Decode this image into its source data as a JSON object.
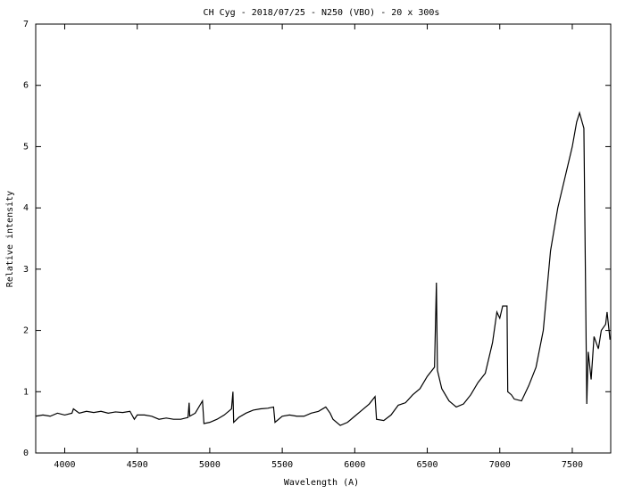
{
  "chart_data": {
    "type": "line",
    "title": "CH Cyg - 2018/07/25 - N250 (VBO) - 20 x 300s",
    "xlabel": "Wavelength (A)",
    "ylabel": "Relative intensity",
    "xlim": [
      3800,
      7765
    ],
    "ylim": [
      0,
      7
    ],
    "xticks": [
      4000,
      4500,
      5000,
      5500,
      6000,
      6500,
      7000,
      7500
    ],
    "yticks": [
      0,
      1,
      2,
      3,
      4,
      5,
      6,
      7
    ],
    "x": [
      3800,
      3850,
      3900,
      3950,
      4000,
      4050,
      4060,
      4100,
      4150,
      4200,
      4250,
      4300,
      4350,
      4400,
      4450,
      4480,
      4500,
      4550,
      4600,
      4650,
      4700,
      4750,
      4800,
      4850,
      4858,
      4862,
      4900,
      4950,
      4960,
      5000,
      5050,
      5100,
      5150,
      5160,
      5165,
      5200,
      5250,
      5300,
      5350,
      5400,
      5440,
      5450,
      5500,
      5550,
      5600,
      5650,
      5700,
      5750,
      5800,
      5830,
      5850,
      5900,
      5950,
      6000,
      6050,
      6100,
      6140,
      6150,
      6200,
      6250,
      6300,
      6350,
      6400,
      6450,
      6500,
      6550,
      6563,
      6570,
      6600,
      6650,
      6700,
      6750,
      6800,
      6850,
      6900,
      6950,
      6980,
      7000,
      7020,
      7050,
      7055,
      7080,
      7100,
      7150,
      7200,
      7250,
      7300,
      7350,
      7400,
      7450,
      7500,
      7530,
      7550,
      7580,
      7600,
      7610,
      7630,
      7650,
      7680,
      7700,
      7730,
      7740,
      7760
    ],
    "series": [
      {
        "name": "CH Cyg",
        "color": "#000000",
        "values": [
          0.6,
          0.62,
          0.6,
          0.65,
          0.62,
          0.65,
          0.72,
          0.65,
          0.68,
          0.66,
          0.68,
          0.65,
          0.67,
          0.66,
          0.68,
          0.55,
          0.62,
          0.62,
          0.6,
          0.55,
          0.57,
          0.55,
          0.55,
          0.58,
          0.82,
          0.6,
          0.65,
          0.85,
          0.48,
          0.5,
          0.55,
          0.62,
          0.72,
          1.0,
          0.5,
          0.58,
          0.65,
          0.7,
          0.72,
          0.73,
          0.75,
          0.5,
          0.6,
          0.62,
          0.6,
          0.6,
          0.65,
          0.68,
          0.75,
          0.65,
          0.55,
          0.45,
          0.5,
          0.6,
          0.7,
          0.8,
          0.92,
          0.55,
          0.53,
          0.62,
          0.78,
          0.82,
          0.95,
          1.05,
          1.25,
          1.4,
          2.78,
          1.35,
          1.05,
          0.85,
          0.75,
          0.8,
          0.95,
          1.15,
          1.3,
          1.8,
          2.3,
          2.2,
          2.4,
          2.4,
          1.0,
          0.95,
          0.88,
          0.85,
          1.1,
          1.4,
          2.0,
          3.3,
          4.0,
          4.5,
          5.0,
          5.4,
          5.55,
          5.3,
          0.8,
          1.65,
          1.2,
          1.9,
          1.7,
          2.0,
          2.1,
          2.3,
          1.85
        ]
      }
    ]
  }
}
